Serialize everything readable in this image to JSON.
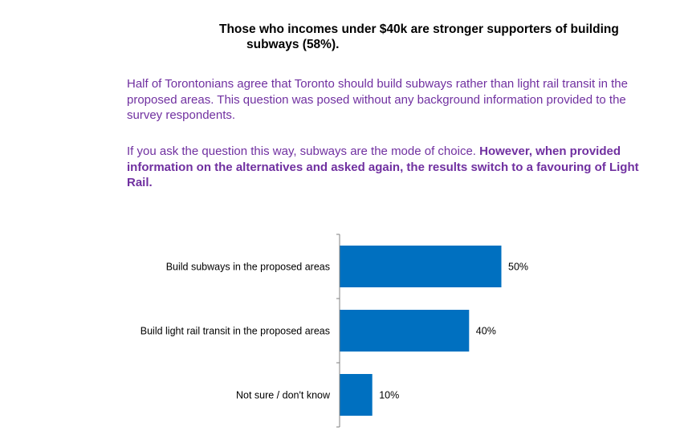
{
  "headline": {
    "line1": "Those who incomes under $40k are stronger supporters of building",
    "line2": "subways (58%)."
  },
  "paragraph1": "Half of Torontonians agree that Toronto should build subways rather than light rail transit in the proposed areas.  This question was posed without any background information provided to the survey respondents.",
  "paragraph2": {
    "plain": "If you ask the question this way, subways are the mode of choice.  ",
    "bold": "However, when provided information on the alternatives and asked again, the results switch to a favouring of Light Rail."
  },
  "colors": {
    "bar": "#0070c0",
    "text_accent": "#7030a0",
    "axis": "#808080"
  },
  "chart_data": {
    "type": "bar",
    "orientation": "horizontal",
    "categories": [
      "Build subways in the proposed areas",
      "Build light rail transit in the proposed areas",
      "Not sure / don't know"
    ],
    "values": [
      50,
      40,
      10
    ],
    "value_labels": [
      "50%",
      "40%",
      "10%"
    ],
    "xlim": [
      0,
      100
    ],
    "grid": false
  }
}
